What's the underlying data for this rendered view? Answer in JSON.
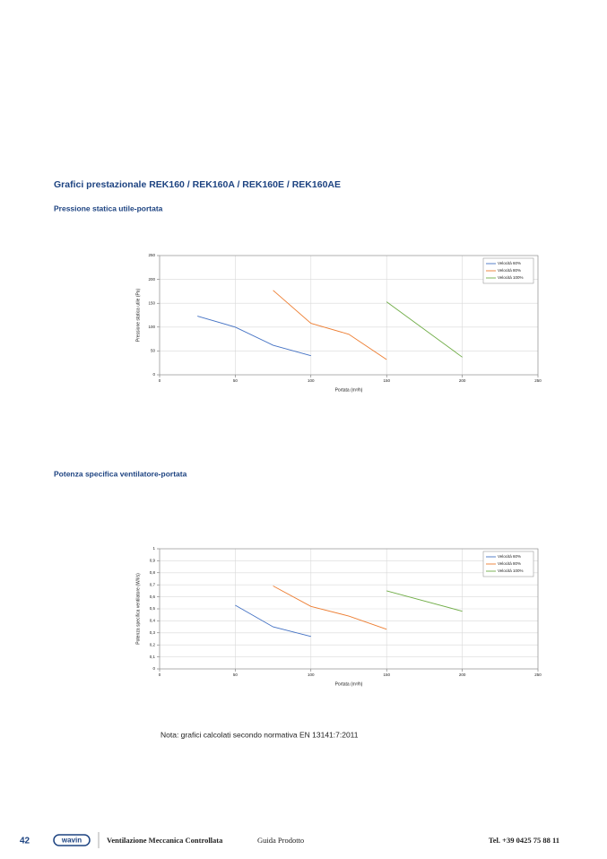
{
  "title": "Grafici prestazionale REK160 / REK160A / REK160E / REK160AE",
  "chart_data": [
    {
      "type": "line",
      "title": "Pressione statica utile-portata",
      "xlabel": "Portata (m³/h)",
      "ylabel": "Pressione statica utile (Pa)",
      "xlim": [
        0,
        250
      ],
      "xticks": [
        0,
        50,
        100,
        150,
        200,
        250
      ],
      "ylim": [
        0,
        250
      ],
      "yticks": [
        0,
        50,
        100,
        150,
        200,
        250
      ],
      "grid": true,
      "legend": "upper right",
      "series": [
        {
          "name": "Velocità 60%",
          "color": "#4472c4",
          "x": [
            25,
            50,
            75,
            100
          ],
          "values": [
            123,
            100,
            62,
            40
          ]
        },
        {
          "name": "Velocità 80%",
          "color": "#ed7d31",
          "x": [
            75,
            100,
            125,
            150
          ],
          "values": [
            177,
            108,
            85,
            32
          ]
        },
        {
          "name": "Velocità 100%",
          "color": "#70ad47",
          "x": [
            150,
            200
          ],
          "values": [
            153,
            37
          ]
        }
      ]
    },
    {
      "type": "line",
      "title": "Potenza specifica ventilatore-portata",
      "xlabel": "Portata (m³/h)",
      "ylabel": "Potenza specifica ventilatore (W/l/s)",
      "xlim": [
        0,
        250
      ],
      "xticks": [
        0,
        50,
        100,
        150,
        200,
        250
      ],
      "ylim": [
        0,
        1
      ],
      "yticks": [
        0,
        {
          "value": 0.1,
          "label": "0,1"
        },
        {
          "value": 0.2,
          "label": "0,2"
        },
        {
          "value": 0.3,
          "label": "0,3"
        },
        {
          "value": 0.4,
          "label": "0,4"
        },
        {
          "value": 0.5,
          "label": "0,5"
        },
        {
          "value": 0.6,
          "label": "0,6"
        },
        {
          "value": 0.7,
          "label": "0,7"
        },
        {
          "value": 0.8,
          "label": "0,8"
        },
        {
          "value": 0.9,
          "label": "0,9"
        },
        1
      ],
      "grid": true,
      "legend": "upper right",
      "series": [
        {
          "name": "Velocità 60%",
          "color": "#4472c4",
          "x": [
            50,
            75,
            100
          ],
          "values": [
            0.53,
            0.35,
            0.27
          ]
        },
        {
          "name": "Velocità 80%",
          "color": "#ed7d31",
          "x": [
            75,
            100,
            125,
            150
          ],
          "values": [
            0.69,
            0.52,
            0.44,
            0.33
          ]
        },
        {
          "name": "Velocità 100%",
          "color": "#70ad47",
          "x": [
            150,
            200
          ],
          "values": [
            0.65,
            0.48
          ]
        }
      ]
    }
  ],
  "note": "Nota: grafici calcolati secondo normativa EN 13141:7:2011",
  "footer": {
    "page": "42",
    "logo": "wavin",
    "product": "Ventilazione Meccanica Controllata",
    "guide": "Guida Prodotto",
    "phone": "Tel. +39 0425 75 88 11"
  }
}
